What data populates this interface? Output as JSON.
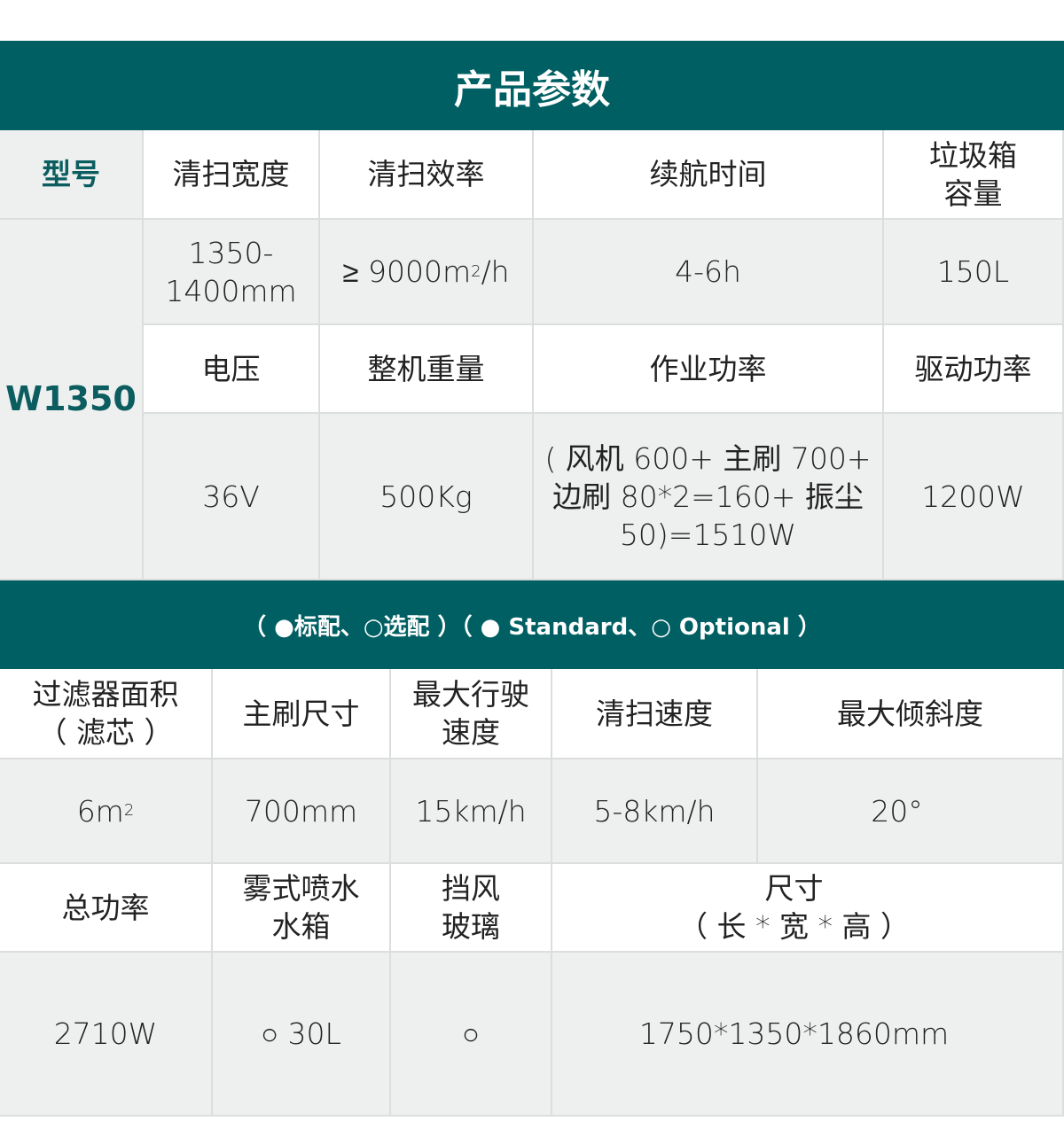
{
  "title": "产品参数",
  "table1": {
    "model_label": "型号",
    "model": "W1350",
    "headers1": [
      "清扫宽度",
      "清扫效率",
      "续航时间",
      "垃圾箱\n容量"
    ],
    "values1": [
      "1350-\n1400mm",
      "≥ 9000m",
      "2",
      "/h",
      "4-6h",
      "150L"
    ],
    "headers2": [
      "电压",
      "整机重量",
      "作业功率",
      "驱动功率"
    ],
    "values2": [
      "36V",
      "500Kg",
      "( 风机 600+ 主刷 700+\n边刷 80*2=160+ 振尘\n50)=1510W",
      "1200W"
    ]
  },
  "legend": "（ ●标配、○选配 ）（ ● Standard、○ Optional ）",
  "table2": {
    "headers1": [
      "过滤器面积\n（ 滤芯 ）",
      "主刷尺寸",
      "最大行驶\n速度",
      "清扫速度",
      "最大倾斜度"
    ],
    "values1": [
      "6m",
      "2",
      "700mm",
      "15km/h",
      "5-8km/h",
      "20°"
    ],
    "headers2": [
      "总功率",
      "雾式喷水\n水箱",
      "挡风\n玻璃",
      "尺寸\n（ 长 * 宽 * 高 ）"
    ],
    "values2": [
      "2710W",
      "○ 30L",
      "○",
      "1750*1350*1860mm"
    ]
  },
  "colors": {
    "teal": "#005f62",
    "grey": "#eef0ef"
  }
}
